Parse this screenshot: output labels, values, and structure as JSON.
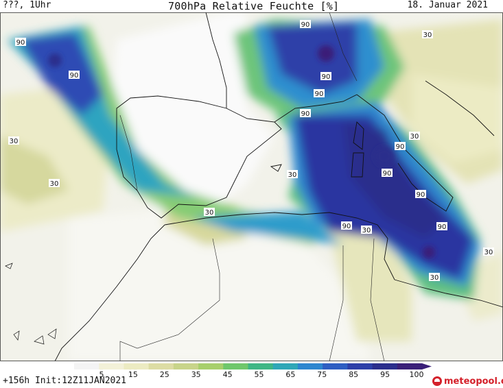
{
  "header": {
    "left_label": "???, 1Uhr",
    "title": "700hPa Relative Feuchte [%]",
    "date": "18. Januar 2021"
  },
  "footer": {
    "run_info": "+156h Init:12Z11JAN2021",
    "logo": "meteopool.org"
  },
  "colorbar": {
    "labels": [
      "5",
      "15",
      "25",
      "35",
      "45",
      "55",
      "65",
      "75",
      "85",
      "95",
      "100"
    ],
    "colors": [
      "#f4f4f4",
      "#f3f1d8",
      "#ecebc2",
      "#dcdca4",
      "#c8d48a",
      "#a7cf6c",
      "#6fc76b",
      "#3fb685",
      "#2fa7b7",
      "#2d86cf",
      "#2e5ec2",
      "#2d3fa8",
      "#2b2e8c",
      "#3a1f78"
    ]
  },
  "map": {
    "contour_labels": [
      {
        "text": "90"
      },
      {
        "text": "90"
      },
      {
        "text": "90"
      },
      {
        "text": "90"
      },
      {
        "text": "90"
      },
      {
        "text": "90"
      },
      {
        "text": "90"
      },
      {
        "text": "90"
      },
      {
        "text": "90"
      },
      {
        "text": "90"
      },
      {
        "text": "90"
      },
      {
        "text": "30"
      },
      {
        "text": "30"
      },
      {
        "text": "30"
      },
      {
        "text": "30"
      },
      {
        "text": "30"
      },
      {
        "text": "30"
      },
      {
        "text": "30"
      },
      {
        "text": "30"
      },
      {
        "text": "30"
      }
    ]
  }
}
